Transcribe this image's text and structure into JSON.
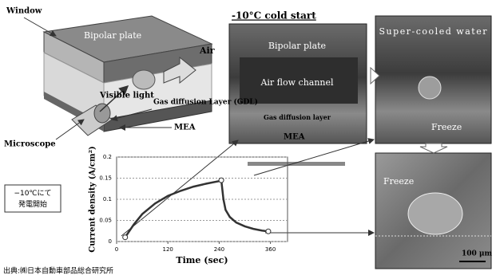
{
  "diagram": {
    "window": "Window",
    "bipolar_plate": "Bipolar plate",
    "air": "Air",
    "visible_light": "Visible light",
    "microscope": "Microscope",
    "gdl": "Gas diffusion Layer (GDL)",
    "mea": "MEA"
  },
  "photos": {
    "title": "-10°C cold start",
    "bipolar_plate": "Bipolar plate",
    "air_flow_channel": "Air flow channel",
    "gas_diffusion_layer": "Gas diffusion layer",
    "mea": "MEA",
    "super_cooled_water": "Super-cooled water",
    "freeze_top": "Freeze",
    "freeze_bottom": "Freeze",
    "scale": "100 μm"
  },
  "note": "−10℃にて 発電開始",
  "source": "出典:㈱日本自動車部品総合研究所",
  "chart_data": {
    "type": "line",
    "x_label": "Time (sec)",
    "y_label": "Current density (A/cm²)",
    "x": [
      20,
      40,
      60,
      90,
      120,
      150,
      180,
      210,
      240,
      245,
      250,
      255,
      265,
      280,
      300,
      320,
      340,
      355
    ],
    "values": [
      0.01,
      0.04,
      0.065,
      0.09,
      0.108,
      0.12,
      0.13,
      0.137,
      0.143,
      0.145,
      0.1,
      0.075,
      0.058,
      0.045,
      0.036,
      0.03,
      0.026,
      0.024
    ],
    "color": "#333333",
    "xlim": [
      0,
      400
    ],
    "xticks": [
      0,
      120,
      240,
      360
    ],
    "ylim": [
      0,
      0.2
    ],
    "yticks": [
      0,
      0.05,
      0.1,
      0.15,
      0.2
    ],
    "grid": true
  }
}
